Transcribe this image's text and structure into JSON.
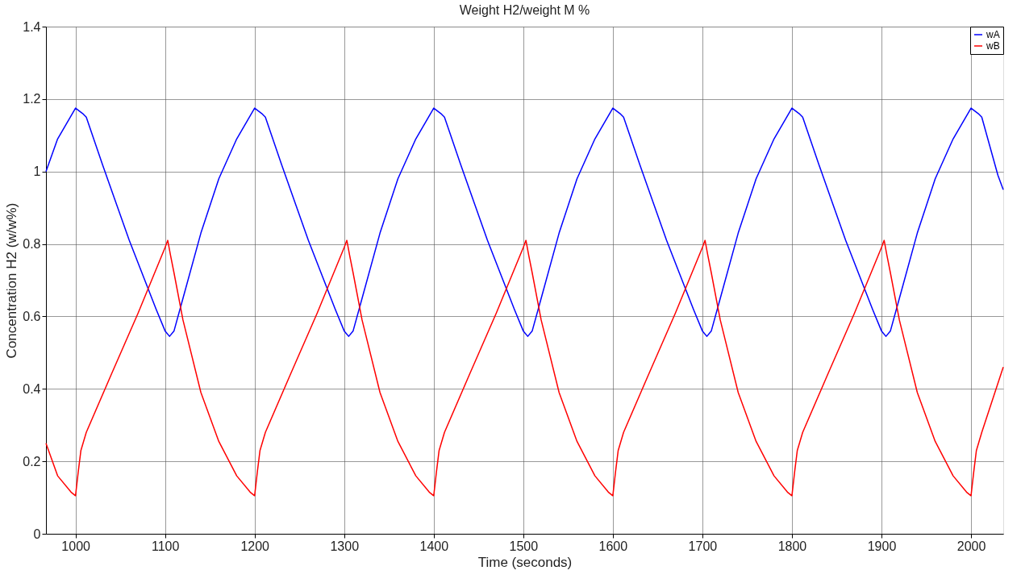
{
  "chart_data": {
    "type": "line",
    "title": "Weight H2/weight M %",
    "xlabel": "Time (seconds)",
    "ylabel": "Concentration H2 (w/w%)",
    "xlim": [
      967,
      2036
    ],
    "xticks": [
      1000,
      1100,
      1200,
      1300,
      1400,
      1500,
      1600,
      1700,
      1800,
      1900,
      2000
    ],
    "ylim": [
      0,
      1.4
    ],
    "yticks": [
      0,
      0.2,
      0.4,
      0.6,
      0.8,
      1,
      1.2,
      1.4
    ],
    "grid": true,
    "legend": "top right",
    "series": [
      {
        "name": "wA",
        "color": "#0000ff",
        "x": [
          967,
          980,
          1000,
          1008,
          1012,
          1030,
          1060,
          1090,
          1100,
          1105,
          1110,
          1120,
          1140,
          1160,
          1180,
          1200,
          1208,
          1212,
          1230,
          1260,
          1290,
          1300,
          1305,
          1310,
          1320,
          1340,
          1360,
          1380,
          1400,
          1408,
          1412,
          1430,
          1460,
          1490,
          1500,
          1505,
          1510,
          1520,
          1540,
          1560,
          1580,
          1600,
          1608,
          1612,
          1630,
          1660,
          1690,
          1700,
          1705,
          1710,
          1720,
          1740,
          1760,
          1780,
          1800,
          1808,
          1812,
          1830,
          1860,
          1890,
          1900,
          1905,
          1910,
          1920,
          1940,
          1960,
          1980,
          2000,
          2008,
          2012,
          2030,
          2036
        ],
        "values": [
          1.0,
          1.09,
          1.175,
          1.16,
          1.15,
          1.02,
          0.81,
          0.62,
          0.56,
          0.545,
          0.56,
          0.65,
          0.83,
          0.98,
          1.09,
          1.175,
          1.16,
          1.15,
          1.02,
          0.81,
          0.62,
          0.56,
          0.545,
          0.56,
          0.65,
          0.83,
          0.98,
          1.09,
          1.175,
          1.16,
          1.15,
          1.02,
          0.81,
          0.62,
          0.56,
          0.545,
          0.56,
          0.65,
          0.83,
          0.98,
          1.09,
          1.175,
          1.16,
          1.15,
          1.02,
          0.81,
          0.62,
          0.56,
          0.545,
          0.56,
          0.65,
          0.83,
          0.98,
          1.09,
          1.175,
          1.16,
          1.15,
          1.02,
          0.81,
          0.62,
          0.56,
          0.545,
          0.56,
          0.65,
          0.83,
          0.98,
          1.09,
          1.175,
          1.16,
          1.15,
          0.99,
          0.95
        ]
      },
      {
        "name": "wB",
        "color": "#ff0000",
        "x": [
          967,
          980,
          995,
          1000,
          1003,
          1006,
          1012,
          1040,
          1070,
          1100,
          1103,
          1106,
          1110,
          1120,
          1140,
          1160,
          1180,
          1195,
          1200,
          1203,
          1206,
          1212,
          1240,
          1270,
          1300,
          1303,
          1306,
          1310,
          1320,
          1340,
          1360,
          1380,
          1395,
          1400,
          1403,
          1406,
          1412,
          1440,
          1470,
          1500,
          1503,
          1506,
          1510,
          1520,
          1540,
          1560,
          1580,
          1595,
          1600,
          1603,
          1606,
          1612,
          1640,
          1670,
          1700,
          1703,
          1706,
          1710,
          1720,
          1740,
          1760,
          1780,
          1795,
          1800,
          1803,
          1806,
          1812,
          1840,
          1870,
          1900,
          1903,
          1906,
          1910,
          1920,
          1940,
          1960,
          1980,
          1995,
          2000,
          2003,
          2006,
          2012,
          2036
        ],
        "values": [
          0.25,
          0.16,
          0.115,
          0.105,
          0.17,
          0.23,
          0.28,
          0.44,
          0.61,
          0.79,
          0.81,
          0.77,
          0.72,
          0.59,
          0.39,
          0.255,
          0.16,
          0.115,
          0.105,
          0.17,
          0.23,
          0.28,
          0.44,
          0.61,
          0.79,
          0.81,
          0.77,
          0.72,
          0.59,
          0.39,
          0.255,
          0.16,
          0.115,
          0.105,
          0.17,
          0.23,
          0.28,
          0.44,
          0.61,
          0.79,
          0.81,
          0.77,
          0.72,
          0.59,
          0.39,
          0.255,
          0.16,
          0.115,
          0.105,
          0.17,
          0.23,
          0.28,
          0.44,
          0.61,
          0.79,
          0.81,
          0.77,
          0.72,
          0.59,
          0.39,
          0.255,
          0.16,
          0.115,
          0.105,
          0.17,
          0.23,
          0.28,
          0.44,
          0.61,
          0.79,
          0.81,
          0.77,
          0.72,
          0.59,
          0.39,
          0.255,
          0.16,
          0.115,
          0.105,
          0.17,
          0.23,
          0.28,
          0.46
        ]
      }
    ]
  }
}
